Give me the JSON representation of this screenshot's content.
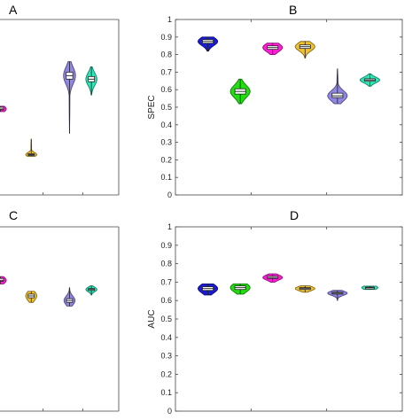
{
  "chart_data": [
    {
      "panel": "A",
      "type": "violin",
      "ylabel": "",
      "ylim": [
        0,
        1
      ],
      "yticks": [],
      "grid": false,
      "series": [
        {
          "color": "#ff1fd6",
          "median": 0.49,
          "q1": 0.485,
          "q3": 0.5,
          "min": 0.475,
          "max": 0.505,
          "w": 0.6
        },
        {
          "color": "#f2c12e",
          "median": 0.23,
          "q1": 0.225,
          "q3": 0.235,
          "min": 0.22,
          "max": 0.32,
          "w": 0.55
        },
        {
          "color": "#8f86e6",
          "median": 0.68,
          "q1": 0.66,
          "q3": 0.7,
          "min": 0.35,
          "max": 0.76,
          "w": 0.6
        },
        {
          "color": "#2ee6b8",
          "median": 0.66,
          "q1": 0.645,
          "q3": 0.675,
          "min": 0.57,
          "max": 0.73,
          "w": 0.55
        }
      ]
    },
    {
      "panel": "B",
      "type": "violin",
      "ylabel": "SPEC",
      "ylim": [
        0,
        1
      ],
      "yticks": [
        "0",
        "0.1",
        "0.2",
        "0.3",
        "0.4",
        "0.5",
        "0.6",
        "0.7",
        "0.8",
        "0.9",
        "1"
      ],
      "grid": false,
      "series": [
        {
          "color": "#1a1ad9",
          "median": 0.875,
          "q1": 0.865,
          "q3": 0.885,
          "min": 0.82,
          "max": 0.9,
          "w": 0.55
        },
        {
          "color": "#22dd11",
          "median": 0.59,
          "q1": 0.575,
          "q3": 0.605,
          "min": 0.52,
          "max": 0.66,
          "w": 0.55
        },
        {
          "color": "#ff1fd6",
          "median": 0.84,
          "q1": 0.83,
          "q3": 0.85,
          "min": 0.8,
          "max": 0.865,
          "w": 0.55
        },
        {
          "color": "#f2c12e",
          "median": 0.845,
          "q1": 0.835,
          "q3": 0.855,
          "min": 0.78,
          "max": 0.875,
          "w": 0.55
        },
        {
          "color": "#8f86e6",
          "median": 0.565,
          "q1": 0.555,
          "q3": 0.58,
          "min": 0.52,
          "max": 0.72,
          "w": 0.55
        },
        {
          "color": "#2ee6b8",
          "median": 0.655,
          "q1": 0.648,
          "q3": 0.662,
          "min": 0.62,
          "max": 0.69,
          "w": 0.55
        }
      ]
    },
    {
      "panel": "C",
      "type": "violin",
      "ylabel": "",
      "ylim": [
        0,
        1
      ],
      "yticks": [],
      "grid": false,
      "series": [
        {
          "color": "#ff1fd6",
          "median": 0.71,
          "q1": 0.705,
          "q3": 0.72,
          "min": 0.69,
          "max": 0.73,
          "w": 0.6
        },
        {
          "color": "#f2c12e",
          "median": 0.625,
          "q1": 0.615,
          "q3": 0.635,
          "min": 0.59,
          "max": 0.65,
          "w": 0.55
        },
        {
          "color": "#8f86e6",
          "median": 0.6,
          "q1": 0.59,
          "q3": 0.61,
          "min": 0.57,
          "max": 0.67,
          "w": 0.55
        },
        {
          "color": "#2ee6b8",
          "median": 0.66,
          "q1": 0.655,
          "q3": 0.665,
          "min": 0.63,
          "max": 0.68,
          "w": 0.55
        }
      ]
    },
    {
      "panel": "D",
      "type": "violin",
      "ylabel": "AUC",
      "ylim": [
        0,
        1
      ],
      "yticks": [
        "0",
        "0.1",
        "0.2",
        "0.3",
        "0.4",
        "0.5",
        "0.6",
        "0.7",
        "0.8",
        "0.9",
        "1"
      ],
      "grid": false,
      "series": [
        {
          "color": "#1a1ad9",
          "median": 0.665,
          "q1": 0.655,
          "q3": 0.675,
          "min": 0.63,
          "max": 0.69,
          "w": 0.55
        },
        {
          "color": "#22dd11",
          "median": 0.67,
          "q1": 0.66,
          "q3": 0.68,
          "min": 0.635,
          "max": 0.69,
          "w": 0.55
        },
        {
          "color": "#ff1fd6",
          "median": 0.725,
          "q1": 0.72,
          "q3": 0.732,
          "min": 0.7,
          "max": 0.745,
          "w": 0.55
        },
        {
          "color": "#f2c12e",
          "median": 0.665,
          "q1": 0.66,
          "q3": 0.67,
          "min": 0.645,
          "max": 0.68,
          "w": 0.55
        },
        {
          "color": "#8f86e6",
          "median": 0.64,
          "q1": 0.635,
          "q3": 0.645,
          "min": 0.6,
          "max": 0.655,
          "w": 0.55
        },
        {
          "color": "#2ee6b8",
          "median": 0.67,
          "q1": 0.667,
          "q3": 0.673,
          "min": 0.66,
          "max": 0.678,
          "w": 0.45
        }
      ]
    }
  ]
}
